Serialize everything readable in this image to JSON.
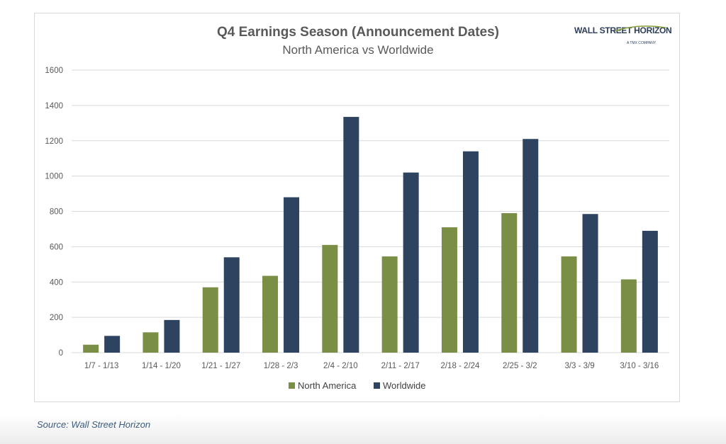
{
  "logo": {
    "brand": "WALL STREET HORIZON",
    "tagline": "A TMX COMPANY"
  },
  "source": "Source: Wall Street Horizon",
  "colors": {
    "north_america": "#7a8f45",
    "worldwide": "#2d435f",
    "grid": "#d9d9d9"
  },
  "chart_data": {
    "type": "bar",
    "title": "Q4 Earnings Season (Announcement Dates)",
    "subtitle": "North America vs Worldwide",
    "categories": [
      "1/7 - 1/13",
      "1/14 - 1/20",
      "1/21 - 1/27",
      "1/28 - 2/3",
      "2/4 - 2/10",
      "2/11 - 2/17",
      "2/18 - 2/24",
      "2/25 - 3/2",
      "3/3 - 3/9",
      "3/10 - 3/16"
    ],
    "series": [
      {
        "name": "North America",
        "values": [
          45,
          115,
          370,
          435,
          610,
          545,
          710,
          790,
          545,
          415
        ]
      },
      {
        "name": "Worldwide",
        "values": [
          95,
          185,
          540,
          880,
          1335,
          1020,
          1140,
          1210,
          785,
          690
        ]
      }
    ],
    "yticks": [
      "0",
      "200",
      "400",
      "600",
      "800",
      "1000",
      "1200",
      "1400",
      "1600"
    ],
    "ylim": [
      0,
      1600
    ],
    "grid": true,
    "legend": "bottom"
  }
}
